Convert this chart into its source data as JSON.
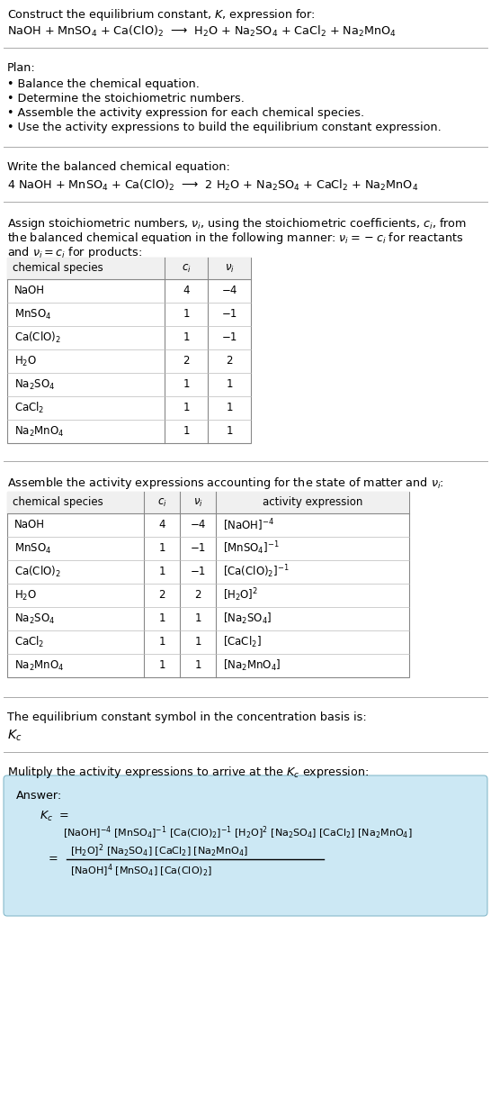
{
  "title_line1": "Construct the equilibrium constant, $K$, expression for:",
  "reaction_unbalanced": "NaOH + MnSO$_4$ + Ca(ClO)$_2$  ⟶  H$_2$O + Na$_2$SO$_4$ + CaCl$_2$ + Na$_2$MnO$_4$",
  "plan_header": "Plan:",
  "plan_items": [
    "• Balance the chemical equation.",
    "• Determine the stoichiometric numbers.",
    "• Assemble the activity expression for each chemical species.",
    "• Use the activity expressions to build the equilibrium constant expression."
  ],
  "balanced_header": "Write the balanced chemical equation:",
  "reaction_balanced": "4 NaOH + MnSO$_4$ + Ca(ClO)$_2$  ⟶  2 H$_2$O + Na$_2$SO$_4$ + CaCl$_2$ + Na$_2$MnO$_4$",
  "stoich_header_l1": "Assign stoichiometric numbers, $\\nu_i$, using the stoichiometric coefficients, $c_i$, from",
  "stoich_header_l2": "the balanced chemical equation in the following manner: $\\nu_i = -c_i$ for reactants",
  "stoich_header_l3": "and $\\nu_i = c_i$ for products:",
  "table1_col0": "chemical species",
  "table1_col1": "$c_i$",
  "table1_col2": "$\\nu_i$",
  "table1_rows": [
    [
      "NaOH",
      "4",
      "−4"
    ],
    [
      "MnSO$_4$",
      "1",
      "−1"
    ],
    [
      "Ca(ClO)$_2$",
      "1",
      "−1"
    ],
    [
      "H$_2$O",
      "2",
      "2"
    ],
    [
      "Na$_2$SO$_4$",
      "1",
      "1"
    ],
    [
      "CaCl$_2$",
      "1",
      "1"
    ],
    [
      "Na$_2$MnO$_4$",
      "1",
      "1"
    ]
  ],
  "activity_header": "Assemble the activity expressions accounting for the state of matter and $\\nu_i$:",
  "table2_col0": "chemical species",
  "table2_col1": "$c_i$",
  "table2_col2": "$\\nu_i$",
  "table2_col3": "activity expression",
  "table2_rows": [
    [
      "NaOH",
      "4",
      "−4",
      "[NaOH]$^{-4}$"
    ],
    [
      "MnSO$_4$",
      "1",
      "−1",
      "[MnSO$_4$]$^{-1}$"
    ],
    [
      "Ca(ClO)$_2$",
      "1",
      "−1",
      "[Ca(ClO)$_2$]$^{-1}$"
    ],
    [
      "H$_2$O",
      "2",
      "2",
      "[H$_2$O]$^2$"
    ],
    [
      "Na$_2$SO$_4$",
      "1",
      "1",
      "[Na$_2$SO$_4$]"
    ],
    [
      "CaCl$_2$",
      "1",
      "1",
      "[CaCl$_2$]"
    ],
    [
      "Na$_2$MnO$_4$",
      "1",
      "1",
      "[Na$_2$MnO$_4$]"
    ]
  ],
  "kc_header": "The equilibrium constant symbol in the concentration basis is:",
  "kc_symbol": "$K_c$",
  "multiply_header": "Mulitply the activity expressions to arrive at the $K_c$ expression:",
  "answer_label": "Answer:",
  "answer_box_color": "#cce8f4",
  "bg_color": "#ffffff",
  "text_color": "#000000",
  "sep_color": "#aaaaaa"
}
